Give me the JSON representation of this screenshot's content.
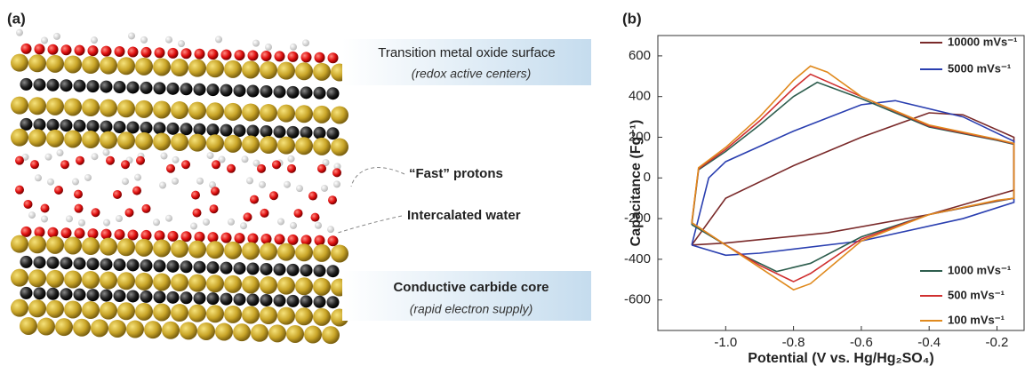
{
  "panel_a": {
    "label": "(a)",
    "annotations": [
      "Transition metal oxide surface",
      "(redox active centers)",
      "“Fast” protons",
      "Intercalated water",
      "Conductive carbide core",
      "(rapid electron supply)"
    ]
  },
  "chart_data": {
    "type": "line",
    "panel_label": "(b)",
    "x_label": "Potential (V vs. Hg/Hg₂SO₄)",
    "y_label": "Capacitance (Fg⁻¹)",
    "xlim": [
      -1.2,
      -0.12
    ],
    "ylim": [
      -750,
      700
    ],
    "xticks": [
      {
        "value": -1,
        "label": "-1.0"
      },
      -0.8,
      -0.6,
      -0.4,
      -0.2
    ],
    "yticks": [
      600,
      400,
      200,
      0,
      -200,
      -400,
      -600
    ],
    "series": [
      {
        "name": "10000 mVs⁻¹",
        "color": "#7a2a2a",
        "x": [
          -1.1,
          -1.0,
          -0.8,
          -0.6,
          -0.4,
          -0.3,
          -0.15,
          -0.15,
          -0.4,
          -0.7,
          -1.0,
          -1.1
        ],
        "values": [
          -330,
          -100,
          60,
          200,
          320,
          310,
          200,
          -60,
          -180,
          -270,
          -320,
          -330
        ]
      },
      {
        "name": "5000 mVs⁻¹",
        "color": "#2a3fb0",
        "x": [
          -1.1,
          -1.05,
          -1.0,
          -0.8,
          -0.6,
          -0.5,
          -0.3,
          -0.15,
          -0.15,
          -0.3,
          -0.6,
          -0.9,
          -1.0,
          -1.1
        ],
        "values": [
          -330,
          0,
          80,
          230,
          360,
          380,
          300,
          180,
          -120,
          -200,
          -310,
          -370,
          -380,
          -330
        ]
      },
      {
        "name": "1000 mVs⁻¹",
        "color": "#2e5e4e",
        "x": [
          -1.1,
          -1.08,
          -1.0,
          -0.9,
          -0.8,
          -0.73,
          -0.6,
          -0.4,
          -0.2,
          -0.15,
          -0.15,
          -0.2,
          -0.4,
          -0.6,
          -0.75,
          -0.85,
          -0.95,
          -1.1
        ],
        "values": [
          -230,
          40,
          130,
          260,
          400,
          470,
          390,
          250,
          185,
          165,
          -100,
          -115,
          -180,
          -290,
          -420,
          -460,
          -380,
          -230
        ]
      },
      {
        "name": "500 mVs⁻¹",
        "color": "#d03030",
        "x": [
          -1.1,
          -1.08,
          -1.0,
          -0.9,
          -0.8,
          -0.75,
          -0.6,
          -0.4,
          -0.2,
          -0.15,
          -0.15,
          -0.2,
          -0.4,
          -0.6,
          -0.75,
          -0.8,
          -0.9,
          -1.0,
          -1.1
        ],
        "values": [
          -220,
          45,
          140,
          280,
          440,
          510,
          400,
          255,
          188,
          168,
          -100,
          -112,
          -180,
          -300,
          -470,
          -510,
          -430,
          -330,
          -220
        ]
      },
      {
        "name": "100 mVs⁻¹",
        "color": "#e08a1e",
        "x": [
          -1.1,
          -1.08,
          -1.0,
          -0.9,
          -0.8,
          -0.75,
          -0.7,
          -0.6,
          -0.4,
          -0.2,
          -0.15,
          -0.15,
          -0.2,
          -0.4,
          -0.6,
          -0.75,
          -0.8,
          -0.9,
          -1.0,
          -1.1
        ],
        "values": [
          -220,
          50,
          150,
          300,
          480,
          550,
          520,
          400,
          260,
          190,
          170,
          -100,
          -110,
          -180,
          -310,
          -520,
          -550,
          -440,
          -330,
          -220
        ]
      }
    ]
  }
}
